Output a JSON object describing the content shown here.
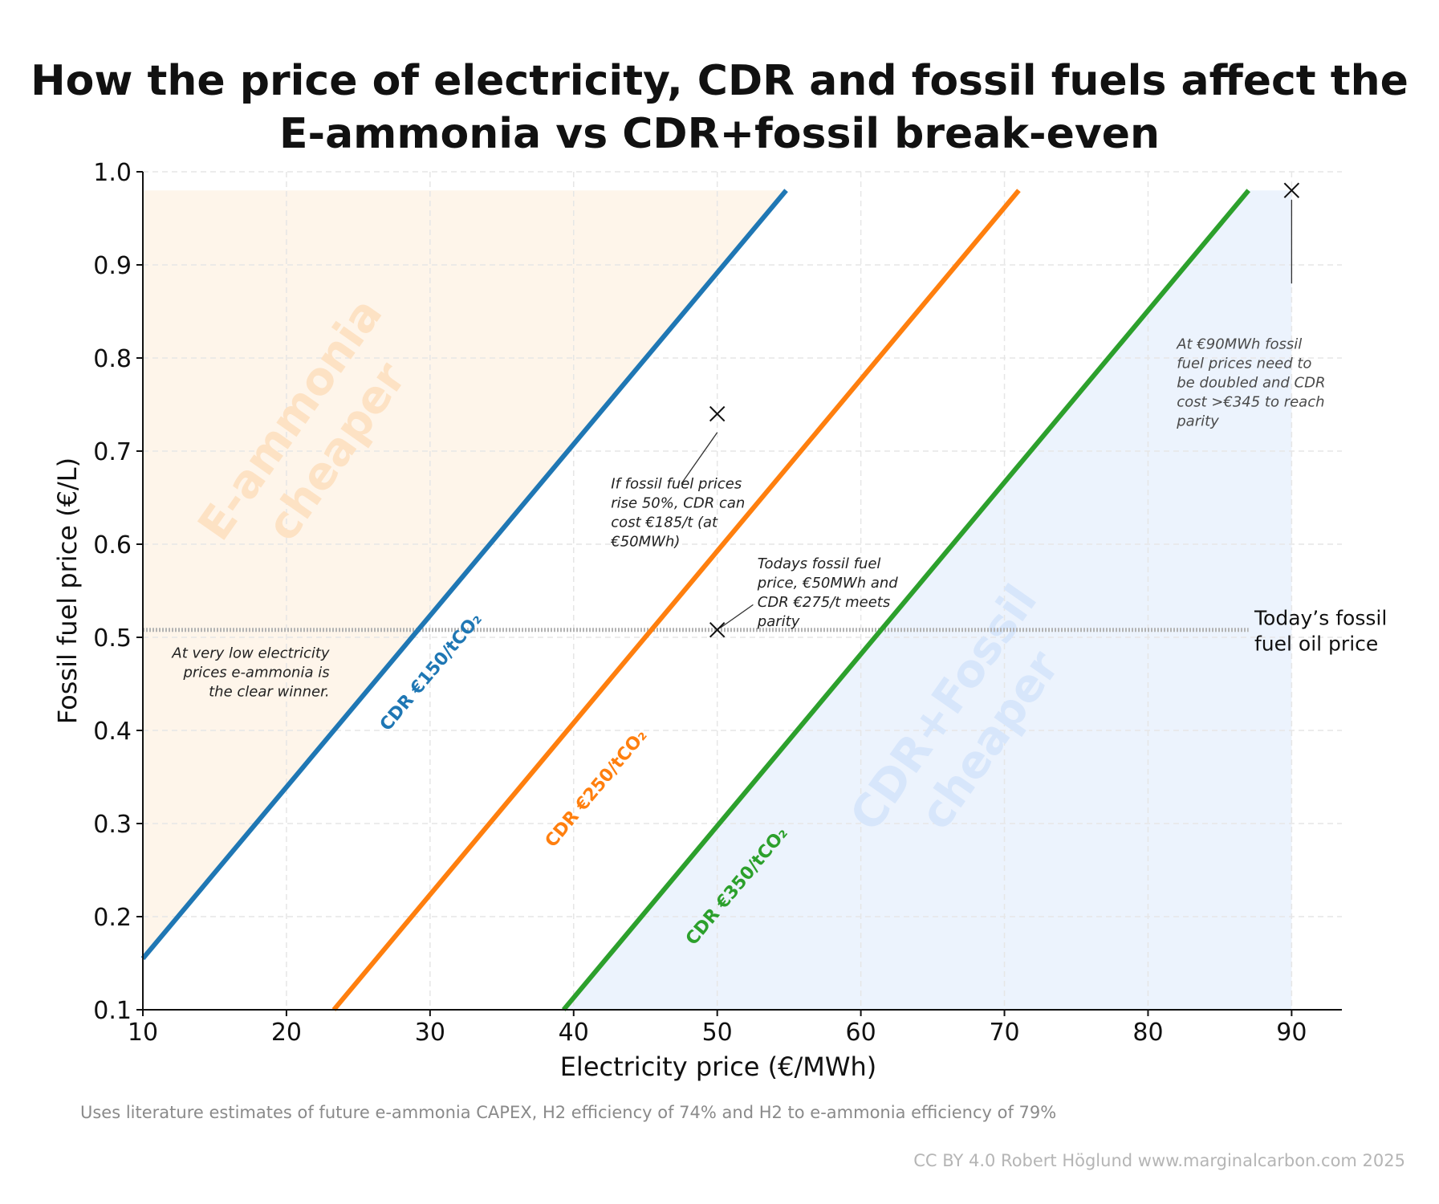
{
  "title_line1": "How the price of electricity, CDR and fossil fuels affect the",
  "title_line2": "E-ammonia vs CDR+fossil break-even",
  "footnote": "Uses literature estimates of future e-ammonia CAPEX, H2 efficiency of 74% and H2 to e-ammonia efficiency of 79%",
  "credit": "CC BY 4.0  Robert Höglund www.marginalcarbon.com 2025",
  "chart_data": {
    "type": "line",
    "xlabel": "Electricity price (€/MWh)",
    "ylabel": "Fossil fuel price (€/L)",
    "xlim": [
      10,
      93.5
    ],
    "ylim": [
      0.1,
      1.0
    ],
    "xticks": [
      10,
      20,
      30,
      40,
      50,
      60,
      70,
      80,
      90
    ],
    "yticks": [
      0.1,
      0.2,
      0.3,
      0.4,
      0.5,
      0.6,
      0.7,
      0.8,
      0.9,
      1.0
    ],
    "ytick_labels": [
      "0.1",
      "0.2",
      "0.3",
      "0.4",
      "0.5",
      "0.6",
      "0.7",
      "0.8",
      "0.9",
      "1.0"
    ],
    "grid": true,
    "series": [
      {
        "name": "CDR €150/tCO₂",
        "color": "#1f77b4",
        "x": [
          10,
          54.8
        ],
        "y": [
          0.155,
          0.98
        ],
        "label_x": 29.5,
        "label_y": 0.47
      },
      {
        "name": "CDR €250/tCO₂",
        "color": "#ff7f0e",
        "x": [
          23.3,
          71.0
        ],
        "y": [
          0.1,
          0.98
        ],
        "label_x": 41.0,
        "label_y": 0.345
      },
      {
        "name": "CDR €350/tCO₂",
        "color": "#2ca02c",
        "x": [
          39.3,
          87.0
        ],
        "y": [
          0.1,
          0.98
        ],
        "label_x": 50.8,
        "label_y": 0.24
      }
    ],
    "reference_line": {
      "y": 0.508,
      "x_end": 87.0,
      "label_line1": "Today’s fossil",
      "label_line2": "fuel oil price"
    },
    "regions": [
      {
        "label_line1": "E-ammonia",
        "label_line2": "cheaper",
        "color": "#fdf1e3",
        "text_color": "#fde2c4",
        "y_top": 0.98,
        "label_x": 22.5,
        "label_y": 0.71
      },
      {
        "label_line1": "CDR+Fossil",
        "label_line2": "cheaper",
        "color": "#e9f1fd",
        "text_color": "#d7e6fb",
        "y_top": 0.98,
        "x_right": 90.0,
        "label_x": 68.0,
        "label_y": 0.4
      }
    ],
    "markers": [
      {
        "x": 50,
        "y": 0.74,
        "symbol": "x"
      },
      {
        "x": 50,
        "y": 0.508,
        "symbol": "x"
      },
      {
        "x": 90,
        "y": 0.98,
        "symbol": "x"
      }
    ],
    "annotations": [
      {
        "lines": [
          "At very low electricity",
          "prices e-ammonia is",
          "the clear winner."
        ],
        "x": 23.0,
        "y": 0.478,
        "align": "end"
      },
      {
        "lines": [
          "If fossil fuel prices",
          "rise 50%, CDR can",
          "cost €185/t (at",
          "€50MWh)"
        ],
        "x": 42.6,
        "y": 0.66,
        "align": "start",
        "pointer": {
          "from_x": 47.5,
          "from_y": 0.665,
          "to_x": 50.0,
          "to_y": 0.72
        }
      },
      {
        "lines": [
          "Todays fossil fuel",
          "price, €50MWh and",
          "CDR €275/t meets",
          "parity"
        ],
        "x": 52.8,
        "y": 0.574,
        "align": "start",
        "pointer": {
          "from_x": 52.5,
          "from_y": 0.535,
          "to_x": 50.2,
          "to_y": 0.51
        }
      },
      {
        "lines": [
          "At €90MWh fossil",
          "fuel prices need to",
          "be doubled and CDR",
          "cost >€345 to reach",
          "parity"
        ],
        "x": 82.0,
        "y": 0.81,
        "align": "start",
        "pointer": {
          "from_x": 90.0,
          "from_y": 0.88,
          "to_x": 90.0,
          "to_y": 0.97
        }
      }
    ]
  }
}
